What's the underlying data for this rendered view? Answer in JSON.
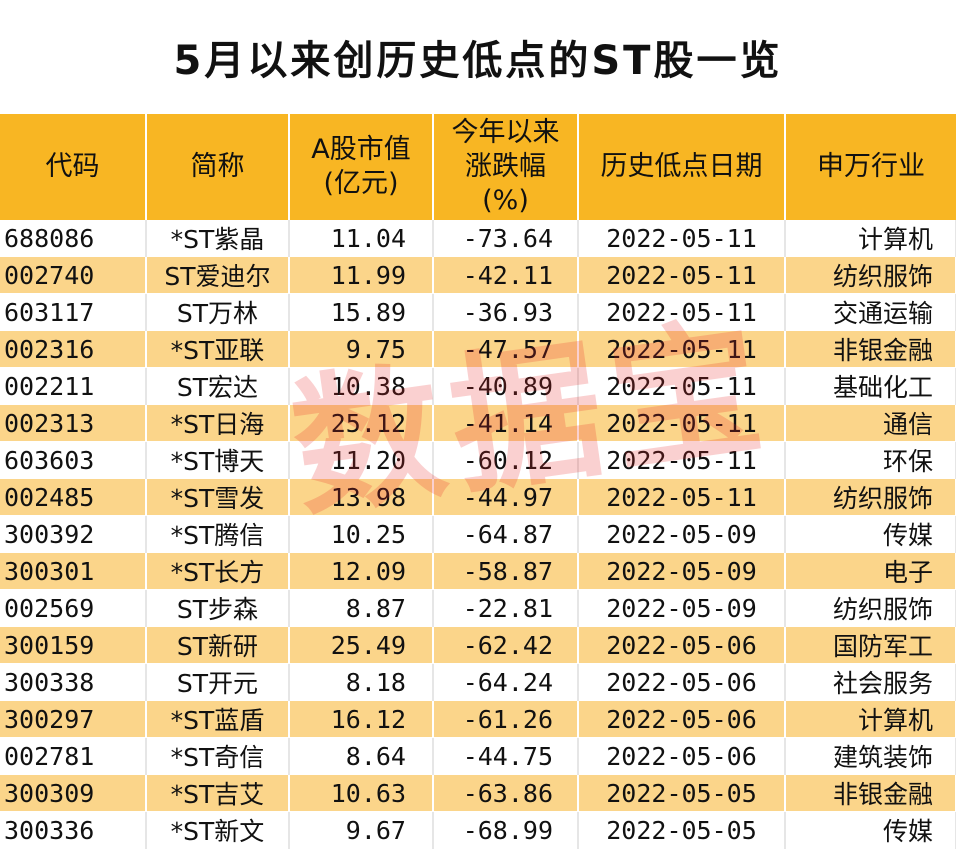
{
  "title": "5月以来创历史低点的ST股一览",
  "watermark": "数据宝",
  "headers": {
    "code": "代码",
    "name": "简称",
    "cap_line1": "A股市值",
    "cap_line2": "(亿元)",
    "chg_line1": "今年以来",
    "chg_line2": "涨跌幅",
    "chg_line3": "(%)",
    "date": "历史低点日期",
    "industry": "申万行业"
  },
  "rows": [
    {
      "code": "688086",
      "name": "*ST紫晶",
      "cap": "11.04",
      "chg": "-73.64",
      "date": "2022-05-11",
      "industry": "计算机"
    },
    {
      "code": "002740",
      "name": "ST爱迪尔",
      "cap": "11.99",
      "chg": "-42.11",
      "date": "2022-05-11",
      "industry": "纺织服饰"
    },
    {
      "code": "603117",
      "name": "ST万林",
      "cap": "15.89",
      "chg": "-36.93",
      "date": "2022-05-11",
      "industry": "交通运输"
    },
    {
      "code": "002316",
      "name": "*ST亚联",
      "cap": "9.75",
      "chg": "-47.57",
      "date": "2022-05-11",
      "industry": "非银金融"
    },
    {
      "code": "002211",
      "name": "ST宏达",
      "cap": "10.38",
      "chg": "-40.89",
      "date": "2022-05-11",
      "industry": "基础化工"
    },
    {
      "code": "002313",
      "name": "*ST日海",
      "cap": "25.12",
      "chg": "-41.14",
      "date": "2022-05-11",
      "industry": "通信"
    },
    {
      "code": "603603",
      "name": "*ST博天",
      "cap": "11.20",
      "chg": "-60.12",
      "date": "2022-05-11",
      "industry": "环保"
    },
    {
      "code": "002485",
      "name": "*ST雪发",
      "cap": "13.98",
      "chg": "-44.97",
      "date": "2022-05-11",
      "industry": "纺织服饰"
    },
    {
      "code": "300392",
      "name": "*ST腾信",
      "cap": "10.25",
      "chg": "-64.87",
      "date": "2022-05-09",
      "industry": "传媒"
    },
    {
      "code": "300301",
      "name": "*ST长方",
      "cap": "12.09",
      "chg": "-58.87",
      "date": "2022-05-09",
      "industry": "电子"
    },
    {
      "code": "002569",
      "name": "ST步森",
      "cap": "8.87",
      "chg": "-22.81",
      "date": "2022-05-09",
      "industry": "纺织服饰"
    },
    {
      "code": "300159",
      "name": "ST新研",
      "cap": "25.49",
      "chg": "-62.42",
      "date": "2022-05-06",
      "industry": "国防军工"
    },
    {
      "code": "300338",
      "name": "ST开元",
      "cap": "8.18",
      "chg": "-64.24",
      "date": "2022-05-06",
      "industry": "社会服务"
    },
    {
      "code": "300297",
      "name": "*ST蓝盾",
      "cap": "16.12",
      "chg": "-61.26",
      "date": "2022-05-06",
      "industry": "计算机"
    },
    {
      "code": "002781",
      "name": "*ST奇信",
      "cap": "8.64",
      "chg": "-44.75",
      "date": "2022-05-06",
      "industry": "建筑装饰"
    },
    {
      "code": "300309",
      "name": "*ST吉艾",
      "cap": "10.63",
      "chg": "-63.86",
      "date": "2022-05-05",
      "industry": "非银金融"
    },
    {
      "code": "300336",
      "name": "*ST新文",
      "cap": "9.67",
      "chg": "-68.99",
      "date": "2022-05-05",
      "industry": "传媒"
    }
  ],
  "colors": {
    "header_bg": "#f8b623",
    "stripe_bg": "#fbd58a",
    "watermark": "#e62828"
  }
}
